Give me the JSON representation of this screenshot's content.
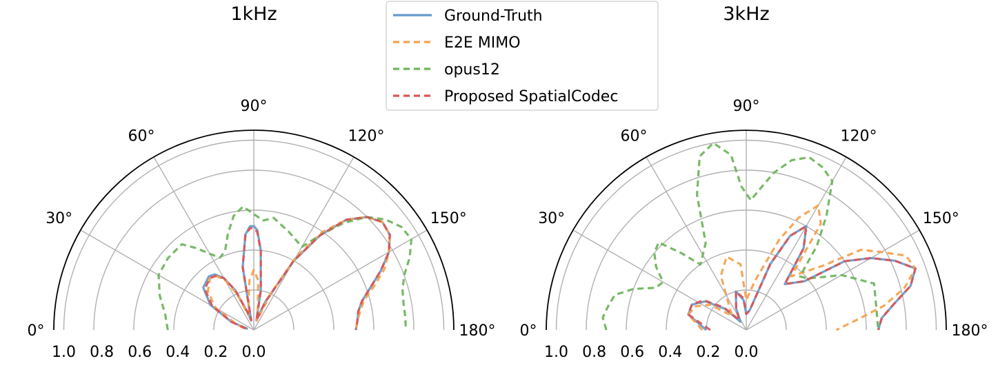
{
  "legend": {
    "placement": "top-center",
    "entries": [
      {
        "name": "Ground-Truth",
        "color": "#6699CC",
        "style": "solid"
      },
      {
        "name": "E2E MIMO",
        "color": "#F5A04A",
        "style": "dashed"
      },
      {
        "name": "opus12",
        "color": "#6BB35A",
        "style": "dashed"
      },
      {
        "name": "Proposed SpatialCodec",
        "color": "#D95555",
        "style": "dashed"
      }
    ]
  },
  "chart_data": [
    {
      "type": "polar",
      "title": "1kHz",
      "theta_range_deg": [
        0,
        180
      ],
      "r_range": [
        0,
        1.0
      ],
      "r_direction": "reversed",
      "angle_tick_labels": [
        "0°",
        "30°",
        "60°",
        "90°",
        "120°",
        "150°",
        "180°"
      ],
      "radial_tick_labels": [
        "1.0",
        "0.8",
        "0.6",
        "0.4",
        "0.2",
        "0.0"
      ],
      "grid": true,
      "series": [
        {
          "name": "Ground-Truth",
          "points": [
            [
              10,
              0.03
            ],
            [
              20,
              0.12
            ],
            [
              30,
              0.25
            ],
            [
              40,
              0.33
            ],
            [
              50,
              0.35
            ],
            [
              55,
              0.34
            ],
            [
              60,
              0.3
            ],
            [
              65,
              0.22
            ],
            [
              70,
              0.1
            ],
            [
              75,
              0.05
            ],
            [
              80,
              0.32
            ],
            [
              85,
              0.48
            ],
            [
              88,
              0.52
            ],
            [
              90,
              0.52
            ],
            [
              92,
              0.5
            ],
            [
              95,
              0.4
            ],
            [
              100,
              0.2
            ],
            [
              105,
              0.05
            ],
            [
              112,
              0.15
            ],
            [
              120,
              0.4
            ],
            [
              125,
              0.58
            ],
            [
              130,
              0.72
            ],
            [
              135,
              0.8
            ],
            [
              140,
              0.84
            ],
            [
              145,
              0.83
            ],
            [
              150,
              0.78
            ],
            [
              155,
              0.7
            ],
            [
              160,
              0.62
            ],
            [
              165,
              0.56
            ],
            [
              170,
              0.53
            ],
            [
              175,
              0.52
            ],
            [
              180,
              0.51
            ]
          ]
        },
        {
          "name": "E2E MIMO",
          "points": [
            [
              10,
              0.05
            ],
            [
              20,
              0.1
            ],
            [
              30,
              0.22
            ],
            [
              40,
              0.3
            ],
            [
              50,
              0.34
            ],
            [
              55,
              0.33
            ],
            [
              60,
              0.29
            ],
            [
              65,
              0.2
            ],
            [
              70,
              0.08
            ],
            [
              75,
              0.1
            ],
            [
              80,
              0.15
            ],
            [
              85,
              0.25
            ],
            [
              90,
              0.3
            ],
            [
              95,
              0.25
            ],
            [
              100,
              0.12
            ],
            [
              108,
              0.05
            ],
            [
              115,
              0.2
            ],
            [
              120,
              0.42
            ],
            [
              125,
              0.6
            ],
            [
              130,
              0.72
            ],
            [
              135,
              0.8
            ],
            [
              140,
              0.84
            ],
            [
              145,
              0.83
            ],
            [
              150,
              0.78
            ],
            [
              155,
              0.72
            ],
            [
              160,
              0.64
            ],
            [
              165,
              0.57
            ],
            [
              170,
              0.54
            ],
            [
              175,
              0.52
            ],
            [
              180,
              0.51
            ]
          ]
        },
        {
          "name": "opus12",
          "points": [
            [
              0,
              0.43
            ],
            [
              10,
              0.45
            ],
            [
              20,
              0.5
            ],
            [
              30,
              0.55
            ],
            [
              40,
              0.56
            ],
            [
              50,
              0.56
            ],
            [
              55,
              0.5
            ],
            [
              60,
              0.44
            ],
            [
              65,
              0.4
            ],
            [
              70,
              0.42
            ],
            [
              75,
              0.5
            ],
            [
              80,
              0.58
            ],
            [
              85,
              0.62
            ],
            [
              90,
              0.58
            ],
            [
              95,
              0.55
            ],
            [
              100,
              0.57
            ],
            [
              110,
              0.52
            ],
            [
              120,
              0.48
            ],
            [
              125,
              0.58
            ],
            [
              130,
              0.7
            ],
            [
              135,
              0.8
            ],
            [
              140,
              0.86
            ],
            [
              145,
              0.9
            ],
            [
              150,
              0.91
            ],
            [
              155,
              0.86
            ],
            [
              160,
              0.8
            ],
            [
              165,
              0.77
            ],
            [
              170,
              0.76
            ],
            [
              175,
              0.76
            ],
            [
              180,
              0.76
            ]
          ]
        },
        {
          "name": "Proposed SpatialCodec",
          "points": [
            [
              10,
              0.04
            ],
            [
              20,
              0.12
            ],
            [
              30,
              0.24
            ],
            [
              40,
              0.32
            ],
            [
              50,
              0.34
            ],
            [
              55,
              0.33
            ],
            [
              60,
              0.3
            ],
            [
              65,
              0.22
            ],
            [
              70,
              0.1
            ],
            [
              75,
              0.05
            ],
            [
              80,
              0.32
            ],
            [
              85,
              0.48
            ],
            [
              88,
              0.51
            ],
            [
              90,
              0.51
            ],
            [
              92,
              0.49
            ],
            [
              95,
              0.4
            ],
            [
              100,
              0.2
            ],
            [
              105,
              0.05
            ],
            [
              112,
              0.15
            ],
            [
              120,
              0.4
            ],
            [
              125,
              0.58
            ],
            [
              130,
              0.72
            ],
            [
              135,
              0.8
            ],
            [
              140,
              0.84
            ],
            [
              145,
              0.83
            ],
            [
              150,
              0.78
            ],
            [
              155,
              0.7
            ],
            [
              160,
              0.62
            ],
            [
              165,
              0.56
            ],
            [
              170,
              0.53
            ],
            [
              175,
              0.52
            ],
            [
              180,
              0.51
            ]
          ]
        }
      ]
    },
    {
      "type": "polar",
      "title": "3kHz",
      "theta_range_deg": [
        0,
        180
      ],
      "r_range": [
        0,
        1.0
      ],
      "r_direction": "reversed",
      "angle_tick_labels": [
        "0°",
        "30°",
        "60°",
        "90°",
        "120°",
        "150°",
        "180°"
      ],
      "radial_tick_labels": [
        "1.0",
        "0.8",
        "0.6",
        "0.4",
        "0.2",
        "0.0"
      ],
      "grid": true,
      "series": [
        {
          "name": "Ground-Truth",
          "points": [
            [
              0,
              0.2
            ],
            [
              15,
              0.3
            ],
            [
              25,
              0.3
            ],
            [
              35,
              0.25
            ],
            [
              45,
              0.15
            ],
            [
              55,
              0.05
            ],
            [
              65,
              0.12
            ],
            [
              75,
              0.2
            ],
            [
              85,
              0.15
            ],
            [
              90,
              0.08
            ],
            [
              100,
              0.1
            ],
            [
              110,
              0.35
            ],
            [
              115,
              0.52
            ],
            [
              120,
              0.6
            ],
            [
              125,
              0.5
            ],
            [
              130,
              0.3
            ],
            [
              140,
              0.38
            ],
            [
              145,
              0.6
            ],
            [
              150,
              0.72
            ],
            [
              155,
              0.82
            ],
            [
              160,
              0.9
            ],
            [
              165,
              0.85
            ],
            [
              170,
              0.75
            ],
            [
              175,
              0.68
            ],
            [
              180,
              0.66
            ]
          ]
        },
        {
          "name": "E2E MIMO",
          "points": [
            [
              0,
              0.22
            ],
            [
              15,
              0.3
            ],
            [
              25,
              0.28
            ],
            [
              35,
              0.22
            ],
            [
              45,
              0.1
            ],
            [
              55,
              0.15
            ],
            [
              65,
              0.3
            ],
            [
              75,
              0.38
            ],
            [
              85,
              0.33
            ],
            [
              90,
              0.15
            ],
            [
              100,
              0.25
            ],
            [
              110,
              0.48
            ],
            [
              115,
              0.62
            ],
            [
              120,
              0.72
            ],
            [
              125,
              0.65
            ],
            [
              130,
              0.35
            ],
            [
              140,
              0.5
            ],
            [
              145,
              0.7
            ],
            [
              150,
              0.78
            ],
            [
              155,
              0.88
            ],
            [
              160,
              0.9
            ],
            [
              165,
              0.82
            ],
            [
              170,
              0.7
            ],
            [
              175,
              0.55
            ],
            [
              180,
              0.45
            ]
          ]
        },
        {
          "name": "opus12",
          "points": [
            [
              0,
              0.7
            ],
            [
              5,
              0.72
            ],
            [
              10,
              0.7
            ],
            [
              15,
              0.68
            ],
            [
              20,
              0.6
            ],
            [
              25,
              0.5
            ],
            [
              30,
              0.48
            ],
            [
              35,
              0.55
            ],
            [
              40,
              0.6
            ],
            [
              45,
              0.62
            ],
            [
              50,
              0.5
            ],
            [
              55,
              0.4
            ],
            [
              65,
              0.48
            ],
            [
              70,
              0.72
            ],
            [
              75,
              0.9
            ],
            [
              80,
              0.95
            ],
            [
              85,
              0.88
            ],
            [
              88,
              0.72
            ],
            [
              92,
              0.65
            ],
            [
              95,
              0.7
            ],
            [
              100,
              0.8
            ],
            [
              105,
              0.88
            ],
            [
              110,
              0.92
            ],
            [
              115,
              0.9
            ],
            [
              120,
              0.86
            ],
            [
              125,
              0.7
            ],
            [
              130,
              0.55
            ],
            [
              135,
              0.38
            ],
            [
              140,
              0.4
            ],
            [
              150,
              0.55
            ],
            [
              160,
              0.68
            ],
            [
              170,
              0.66
            ],
            [
              180,
              0.66
            ]
          ]
        },
        {
          "name": "Proposed SpatialCodec",
          "points": [
            [
              0,
              0.18
            ],
            [
              15,
              0.3
            ],
            [
              25,
              0.3
            ],
            [
              35,
              0.26
            ],
            [
              45,
              0.16
            ],
            [
              55,
              0.06
            ],
            [
              65,
              0.12
            ],
            [
              75,
              0.2
            ],
            [
              85,
              0.16
            ],
            [
              90,
              0.08
            ],
            [
              100,
              0.1
            ],
            [
              110,
              0.35
            ],
            [
              115,
              0.52
            ],
            [
              120,
              0.6
            ],
            [
              125,
              0.5
            ],
            [
              130,
              0.3
            ],
            [
              140,
              0.38
            ],
            [
              145,
              0.6
            ],
            [
              150,
              0.72
            ],
            [
              155,
              0.82
            ],
            [
              160,
              0.9
            ],
            [
              165,
              0.85
            ],
            [
              170,
              0.75
            ],
            [
              175,
              0.68
            ],
            [
              180,
              0.66
            ]
          ]
        }
      ]
    }
  ]
}
